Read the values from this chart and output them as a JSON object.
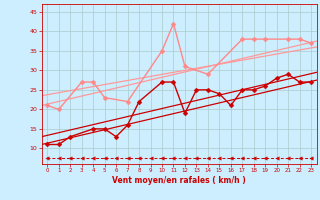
{
  "background_color": "#cceeff",
  "grid_color": "#aacccc",
  "xlabel": "Vent moyen/en rafales ( km/h )",
  "xlabel_color": "#cc0000",
  "tick_color": "#cc0000",
  "ylim": [
    6,
    47
  ],
  "xlim": [
    -0.5,
    23.5
  ],
  "yticks": [
    10,
    15,
    20,
    25,
    30,
    35,
    40,
    45
  ],
  "xticks": [
    0,
    1,
    2,
    3,
    4,
    5,
    6,
    7,
    8,
    9,
    10,
    11,
    12,
    13,
    14,
    15,
    16,
    17,
    18,
    19,
    20,
    21,
    22,
    23
  ],
  "light_pink_data": {
    "x": [
      0,
      1,
      3,
      4,
      5,
      7,
      10,
      11,
      12,
      14,
      17,
      18,
      19,
      21,
      22,
      23
    ],
    "y": [
      21,
      20,
      27,
      27,
      23,
      22,
      35,
      42,
      31,
      29,
      38,
      38,
      38,
      38,
      38,
      37
    ],
    "color": "#ff8888",
    "linewidth": 1.0,
    "marker": "D",
    "markersize": 2.5
  },
  "light_pink_trend1": {
    "x": [
      -0.5,
      23.5
    ],
    "y": [
      21.0,
      37.5
    ],
    "color": "#ff9999",
    "linewidth": 0.9
  },
  "light_pink_trend2": {
    "x": [
      -0.5,
      23.5
    ],
    "y": [
      23.5,
      36.0
    ],
    "color": "#ff9999",
    "linewidth": 0.9
  },
  "dark_red_data": {
    "x": [
      0,
      1,
      2,
      4,
      5,
      6,
      7,
      8,
      10,
      11,
      12,
      13,
      14,
      15,
      16,
      17,
      18,
      19,
      20,
      21,
      22,
      23
    ],
    "y": [
      11,
      11,
      13,
      15,
      15,
      13,
      16,
      22,
      27,
      27,
      19,
      25,
      25,
      24,
      21,
      25,
      25,
      26,
      28,
      29,
      27,
      27
    ],
    "color": "#cc0000",
    "linewidth": 1.0,
    "marker": "D",
    "markersize": 2.5
  },
  "dark_red_trend1": {
    "x": [
      -0.5,
      23.5
    ],
    "y": [
      11.0,
      27.5
    ],
    "color": "#cc0000",
    "linewidth": 0.9
  },
  "dark_red_trend2": {
    "x": [
      -0.5,
      23.5
    ],
    "y": [
      13.0,
      29.5
    ],
    "color": "#cc0000",
    "linewidth": 0.9
  },
  "dashed_x": [
    0,
    1,
    2,
    3,
    4,
    5,
    6,
    7,
    8,
    9,
    10,
    11,
    12,
    13,
    14,
    15,
    16,
    17,
    18,
    19,
    20,
    21,
    22,
    23
  ],
  "dashed_y": [
    7.5,
    7.5,
    7.5,
    7.5,
    7.5,
    7.5,
    7.5,
    7.5,
    7.5,
    7.5,
    7.5,
    7.5,
    7.5,
    7.5,
    7.5,
    7.5,
    7.5,
    7.5,
    7.5,
    7.5,
    7.5,
    7.5,
    7.5,
    7.5
  ],
  "dashed_color": "#cc0000"
}
